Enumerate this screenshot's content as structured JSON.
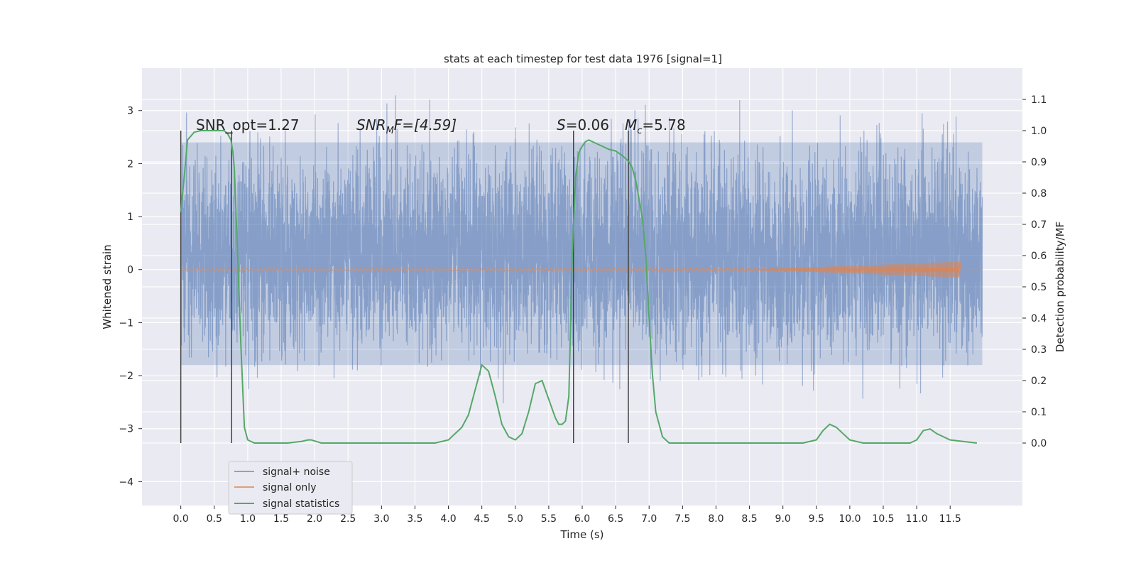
{
  "chart_data": {
    "type": "line",
    "title": "stats at each timestep for test data 1976 [signal=1]",
    "xlabel": "Time (s)",
    "ylabel": "Whitened strain",
    "ylabel_right": "Detection probability/MF",
    "xlim": [
      -0.58,
      12.58
    ],
    "ylim": [
      -4.45,
      3.8
    ],
    "ylim_right": [
      -0.2,
      1.2
    ],
    "x_ticks": [
      "0.0",
      "0.5",
      "1.0",
      "1.5",
      "2.0",
      "2.5",
      "3.0",
      "3.5",
      "4.0",
      "4.5",
      "5.0",
      "5.5",
      "6.0",
      "6.5",
      "7.0",
      "7.5",
      "8.0",
      "8.5",
      "9.0",
      "9.5",
      "10.0",
      "10.5",
      "11.0",
      "11.5"
    ],
    "y_ticks": [
      "3",
      "2",
      "1",
      "0",
      "−1",
      "−2",
      "−3",
      "−4"
    ],
    "y_ticks_right": [
      "0.0",
      "0.1",
      "0.2",
      "0.3",
      "0.4",
      "0.5",
      "0.6",
      "0.7",
      "0.8",
      "0.9",
      "1.0",
      "1.1"
    ],
    "grid": true,
    "legend_position": "lower-left",
    "colors": {
      "background": "#eaeaf2",
      "grid": "#ffffff",
      "noise": "#4c72b0",
      "signal": "#dd8452",
      "statistics": "#55a868",
      "markers": "#444444"
    },
    "annotations": {
      "snr_opt": "SNR_opt=1.27",
      "snr_mf_prefix": "SNR",
      "snr_mf_sub": "M",
      "snr_mf_rest": "F=[4.59]",
      "s_label": "S",
      "s_value": "=0.06",
      "mc_label": "M",
      "mc_sub": "c",
      "mc_value": "=5.78"
    },
    "vlines_x": [
      0.0,
      0.76,
      5.87,
      6.69
    ],
    "noise_envelope": {
      "x_range": [
        0.0,
        11.98
      ],
      "typical_range": [
        -1.8,
        2.4
      ],
      "extreme_range": [
        -4.05,
        3.45
      ]
    },
    "series": [
      {
        "name": "signal+ noise"
      },
      {
        "name": "signal only",
        "chirp_end_x": 11.65,
        "max_amplitude": 0.15
      },
      {
        "name": "signal statistics",
        "x": [
          0.0,
          0.05,
          0.1,
          0.2,
          0.3,
          0.4,
          0.5,
          0.6,
          0.65,
          0.7,
          0.75,
          0.78,
          0.8,
          0.85,
          0.9,
          0.95,
          1.0,
          1.1,
          1.3,
          1.6,
          1.8,
          1.9,
          1.95,
          2.1,
          2.5,
          3.0,
          3.5,
          3.8,
          4.0,
          4.2,
          4.3,
          4.4,
          4.5,
          4.6,
          4.7,
          4.8,
          4.9,
          5.0,
          5.1,
          5.2,
          5.3,
          5.4,
          5.5,
          5.6,
          5.65,
          5.7,
          5.75,
          5.8,
          5.85,
          5.9,
          5.95,
          6.0,
          6.05,
          6.1,
          6.2,
          6.3,
          6.4,
          6.5,
          6.6,
          6.7,
          6.75,
          6.8,
          6.9,
          6.95,
          7.0,
          7.05,
          7.1,
          7.2,
          7.3,
          7.5,
          8.0,
          8.5,
          9.0,
          9.3,
          9.5,
          9.6,
          9.7,
          9.8,
          9.9,
          10.0,
          10.2,
          10.5,
          10.8,
          10.9,
          11.0,
          11.1,
          11.2,
          11.3,
          11.5,
          11.9
        ],
        "y": [
          0.74,
          0.85,
          0.97,
          0.995,
          1.0,
          1.0,
          1.0,
          1.0,
          1.0,
          0.99,
          0.97,
          0.93,
          0.88,
          0.6,
          0.3,
          0.05,
          0.01,
          0.0,
          0.0,
          0.0,
          0.005,
          0.01,
          0.01,
          0.0,
          0.0,
          0.0,
          0.0,
          0.0,
          0.01,
          0.05,
          0.09,
          0.17,
          0.25,
          0.23,
          0.15,
          0.06,
          0.02,
          0.01,
          0.03,
          0.1,
          0.19,
          0.2,
          0.14,
          0.08,
          0.06,
          0.06,
          0.07,
          0.15,
          0.6,
          0.85,
          0.93,
          0.95,
          0.965,
          0.97,
          0.96,
          0.95,
          0.94,
          0.935,
          0.92,
          0.9,
          0.88,
          0.84,
          0.72,
          0.6,
          0.4,
          0.22,
          0.1,
          0.02,
          0.0,
          0.0,
          0.0,
          0.0,
          0.0,
          0.0,
          0.01,
          0.04,
          0.06,
          0.05,
          0.03,
          0.01,
          0.0,
          0.0,
          0.0,
          0.0,
          0.01,
          0.04,
          0.045,
          0.03,
          0.01,
          0.0
        ]
      }
    ]
  }
}
